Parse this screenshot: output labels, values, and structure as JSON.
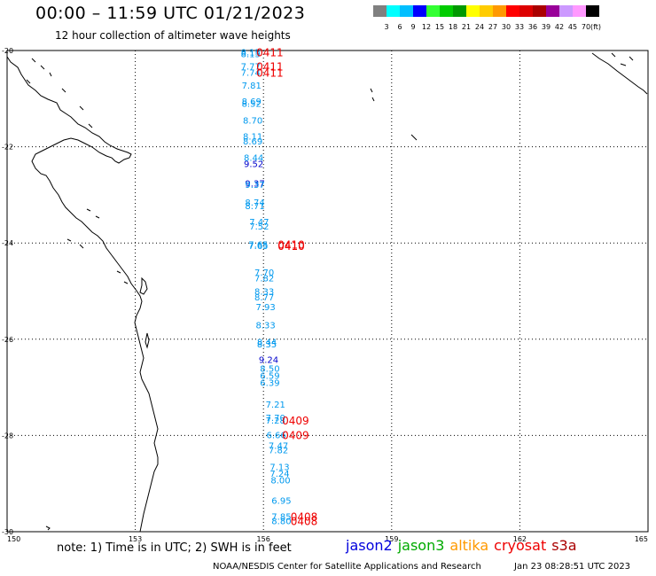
{
  "header": {
    "title": "00:00 – 11:59 UTC 01/21/2023",
    "subtitle": "12 hour collection of altimeter wave heights"
  },
  "legend": {
    "colors": [
      "#808080",
      "#00ffff",
      "#00bfff",
      "#0000ff",
      "#33ff33",
      "#00cc00",
      "#009900",
      "#ffff00",
      "#ffcc00",
      "#ff9900",
      "#ff0000",
      "#dd0000",
      "#aa0000",
      "#990099",
      "#cc99ff",
      "#ff99ff",
      "#000000"
    ],
    "labels": [
      "3",
      "6",
      "9",
      "12",
      "15",
      "18",
      "21",
      "24",
      "27",
      "30",
      "33",
      "36",
      "39",
      "42",
      "45",
      "70"
    ],
    "unit": "(ft)"
  },
  "axes": {
    "lat_labels": [
      "-20",
      "-22",
      "-24",
      "-26",
      "-28",
      "-30"
    ],
    "lon_labels": [
      "150",
      "153",
      "156",
      "159",
      "162",
      "165"
    ]
  },
  "swh_readings": [
    {
      "lon": 155.7,
      "lat": -20.03,
      "text": "8.15",
      "color": "#0099ee"
    },
    {
      "lon": 155.7,
      "lat": -20.06,
      "text": "8.15",
      "color": "#0099ee"
    },
    {
      "lon": 155.7,
      "lat": -20.32,
      "text": "7.77",
      "color": "#0099ee"
    },
    {
      "lon": 155.7,
      "lat": -20.45,
      "text": "7.74",
      "color": "#0099ee"
    },
    {
      "lon": 155.72,
      "lat": -20.72,
      "text": "7.81",
      "color": "#0099ee"
    },
    {
      "lon": 155.72,
      "lat": -21.05,
      "text": "8.69",
      "color": "#0099ee"
    },
    {
      "lon": 155.72,
      "lat": -21.1,
      "text": "8.52",
      "color": "#0099ee"
    },
    {
      "lon": 155.75,
      "lat": -21.45,
      "text": "8.70",
      "color": "#0099ee"
    },
    {
      "lon": 155.75,
      "lat": -21.78,
      "text": "8.11",
      "color": "#0099ee"
    },
    {
      "lon": 155.75,
      "lat": -21.88,
      "text": "8.69",
      "color": "#0099ee"
    },
    {
      "lon": 155.77,
      "lat": -22.22,
      "text": "8.44",
      "color": "#0099ee"
    },
    {
      "lon": 155.77,
      "lat": -22.35,
      "text": "9.52",
      "color": "#0000cc"
    },
    {
      "lon": 155.8,
      "lat": -22.75,
      "text": "9.37",
      "color": "#0000cc"
    },
    {
      "lon": 155.8,
      "lat": -22.78,
      "text": "9.37",
      "color": "#0099ee"
    },
    {
      "lon": 155.8,
      "lat": -23.15,
      "text": "8.74",
      "color": "#0099ee"
    },
    {
      "lon": 155.8,
      "lat": -23.22,
      "text": "8.71",
      "color": "#0099ee"
    },
    {
      "lon": 155.9,
      "lat": -23.55,
      "text": "7.47",
      "color": "#0099ee"
    },
    {
      "lon": 155.9,
      "lat": -23.65,
      "text": "7.52",
      "color": "#0099ee"
    },
    {
      "lon": 155.88,
      "lat": -24.02,
      "text": "7.65",
      "color": "#0099ee"
    },
    {
      "lon": 155.88,
      "lat": -24.05,
      "text": "7.65",
      "color": "#0099ee"
    },
    {
      "lon": 156.02,
      "lat": -24.6,
      "text": "7.70",
      "color": "#0099ee"
    },
    {
      "lon": 156.02,
      "lat": -24.72,
      "text": "7.82",
      "color": "#0099ee"
    },
    {
      "lon": 156.02,
      "lat": -25.0,
      "text": "8.33",
      "color": "#0099ee"
    },
    {
      "lon": 156.02,
      "lat": -25.12,
      "text": "8.77",
      "color": "#0099ee"
    },
    {
      "lon": 156.05,
      "lat": -25.32,
      "text": "7.93",
      "color": "#0099ee"
    },
    {
      "lon": 156.05,
      "lat": -25.7,
      "text": "8.33",
      "color": "#0099ee"
    },
    {
      "lon": 156.08,
      "lat": -26.05,
      "text": "8.44",
      "color": "#0099ee"
    },
    {
      "lon": 156.08,
      "lat": -26.1,
      "text": "8.35",
      "color": "#0099ee"
    },
    {
      "lon": 156.12,
      "lat": -26.42,
      "text": "9.24",
      "color": "#0000cc"
    },
    {
      "lon": 156.15,
      "lat": -26.6,
      "text": "8.50",
      "color": "#0099ee"
    },
    {
      "lon": 156.15,
      "lat": -26.75,
      "text": "6.59",
      "color": "#0099ee"
    },
    {
      "lon": 156.15,
      "lat": -26.9,
      "text": "6.39",
      "color": "#0099ee"
    },
    {
      "lon": 156.28,
      "lat": -27.35,
      "text": "7.21",
      "color": "#0099ee"
    },
    {
      "lon": 156.28,
      "lat": -27.62,
      "text": "7.70",
      "color": "#0099ee"
    },
    {
      "lon": 156.28,
      "lat": -27.68,
      "text": "7.28",
      "color": "#0099ee"
    },
    {
      "lon": 156.3,
      "lat": -27.98,
      "text": "6.66",
      "color": "#0099ee"
    },
    {
      "lon": 156.35,
      "lat": -28.2,
      "text": "7.47",
      "color": "#0099ee"
    },
    {
      "lon": 156.35,
      "lat": -28.3,
      "text": "7.82",
      "color": "#0099ee"
    },
    {
      "lon": 156.38,
      "lat": -28.65,
      "text": "7.13",
      "color": "#0099ee"
    },
    {
      "lon": 156.38,
      "lat": -28.78,
      "text": "7.24",
      "color": "#0099ee"
    },
    {
      "lon": 156.4,
      "lat": -28.92,
      "text": "8.00",
      "color": "#0099ee"
    },
    {
      "lon": 156.42,
      "lat": -29.35,
      "text": "6.95",
      "color": "#0099ee"
    },
    {
      "lon": 156.42,
      "lat": -29.68,
      "text": "7.85",
      "color": "#0099ee"
    },
    {
      "lon": 156.42,
      "lat": -29.77,
      "text": "8.80",
      "color": "#0099ee"
    }
  ],
  "pass_labels": [
    {
      "lon": 156.15,
      "lat": -20.03,
      "text": "0411",
      "color": "#ee0000"
    },
    {
      "lon": 156.15,
      "lat": -20.32,
      "text": "0411",
      "color": "#ee0000"
    },
    {
      "lon": 156.15,
      "lat": -20.45,
      "text": "0411",
      "color": "#ee0000"
    },
    {
      "lon": 156.65,
      "lat": -24.02,
      "text": "0410",
      "color": "#ee0000"
    },
    {
      "lon": 156.65,
      "lat": -24.05,
      "text": "0410",
      "color": "#ee0000"
    },
    {
      "lon": 156.75,
      "lat": -27.68,
      "text": "0409",
      "color": "#ee0000"
    },
    {
      "lon": 156.75,
      "lat": -27.98,
      "text": "0409",
      "color": "#ee0000"
    },
    {
      "lon": 156.95,
      "lat": -29.68,
      "text": "0408",
      "color": "#ee0000"
    },
    {
      "lon": 156.95,
      "lat": -29.77,
      "text": "0408",
      "color": "#ee0000"
    }
  ],
  "footer": {
    "note": "note: 1) Time is in UTC; 2) SWH is in feet",
    "satellites": [
      {
        "name": "jason2",
        "color": "#0000dd"
      },
      {
        "name": "jason3",
        "color": "#00aa00"
      },
      {
        "name": "altika",
        "color": "#ff9900"
      },
      {
        "name": "cryosat",
        "color": "#ee0000"
      },
      {
        "name": "s3a",
        "color": "#aa0000"
      }
    ],
    "credit": "NOAA/NESDIS Center for Satellite Applications and Research",
    "timestamp": "Jan 23 08:28:51 UTC 2023"
  }
}
